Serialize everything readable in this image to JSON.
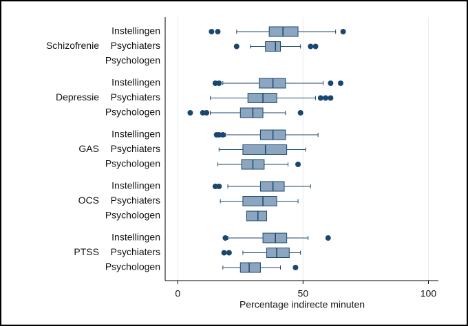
{
  "chart_data": {
    "type": "boxplot",
    "x_label": "Percentage indirecte minuten",
    "xlim": [
      -5,
      104
    ],
    "xticks": [
      0,
      50,
      100
    ],
    "grid": true,
    "box_color": "#8da6bf",
    "line_color": "#1a476f",
    "groups": [
      {
        "name": "Schizofrenie",
        "rows": [
          {
            "label": "Instellingen",
            "whislo": 23.5,
            "q1": 36.5,
            "med": 42,
            "q3": 48,
            "whishi": 63,
            "outliers": [
              13.5,
              16,
              66
            ]
          },
          {
            "label": "Psychiaters",
            "whislo": 29,
            "q1": 35,
            "med": 39,
            "q3": 41,
            "whishi": 49,
            "outliers": [
              23.5,
              53,
              55
            ]
          },
          {
            "label": "Psychologen",
            "whislo": null,
            "q1": null,
            "med": null,
            "q3": null,
            "whishi": null,
            "outliers": []
          }
        ]
      },
      {
        "name": "Depressie",
        "rows": [
          {
            "label": "Instellingen",
            "whislo": 18,
            "q1": 32.5,
            "med": 38,
            "q3": 43,
            "whishi": 58,
            "outliers": [
              15,
              16.5,
              61,
              65
            ]
          },
          {
            "label": "Psychiaters",
            "whislo": 13,
            "q1": 28,
            "med": 34,
            "q3": 39.5,
            "whishi": 55,
            "outliers": [
              57,
              59,
              61
            ]
          },
          {
            "label": "Psychologen",
            "whislo": 13,
            "q1": 25,
            "med": 30,
            "q3": 34,
            "whishi": 43,
            "outliers": [
              5,
              10,
              11.5,
              49
            ]
          }
        ]
      },
      {
        "name": "GAS",
        "rows": [
          {
            "label": "Instellingen",
            "whislo": 19,
            "q1": 33,
            "med": 38,
            "q3": 43,
            "whishi": 56,
            "outliers": [
              15.5,
              16.5,
              18
            ]
          },
          {
            "label": "Psychiaters",
            "whislo": 16.5,
            "q1": 26,
            "med": 35,
            "q3": 43.5,
            "whishi": 51,
            "outliers": []
          },
          {
            "label": "Psychologen",
            "whislo": 16,
            "q1": 25.5,
            "med": 30,
            "q3": 34.5,
            "whishi": 44,
            "outliers": [
              48
            ]
          }
        ]
      },
      {
        "name": "OCS",
        "rows": [
          {
            "label": "Instellingen",
            "whislo": 20,
            "q1": 33,
            "med": 38,
            "q3": 42.5,
            "whishi": 53,
            "outliers": [
              15,
              16.5
            ]
          },
          {
            "label": "Psychiaters",
            "whislo": 17,
            "q1": 26,
            "med": 34,
            "q3": 39.5,
            "whishi": 48,
            "outliers": []
          },
          {
            "label": "Psychologen",
            "whislo": 27.5,
            "q1": 27.5,
            "med": 32,
            "q3": 35.5,
            "whishi": 35.5,
            "outliers": []
          }
        ]
      },
      {
        "name": "PTSS",
        "rows": [
          {
            "label": "Instellingen",
            "whislo": 20,
            "q1": 34,
            "med": 39,
            "q3": 43.5,
            "whishi": 52,
            "outliers": [
              19,
              60
            ]
          },
          {
            "label": "Psychiaters",
            "whislo": 26,
            "q1": 35.5,
            "med": 39.5,
            "q3": 44.5,
            "whishi": 49,
            "outliers": [
              18.5,
              20.5
            ]
          },
          {
            "label": "Psychologen",
            "whislo": 18,
            "q1": 25,
            "med": 28.5,
            "q3": 33,
            "whishi": 41,
            "outliers": [
              47
            ]
          }
        ]
      }
    ]
  }
}
